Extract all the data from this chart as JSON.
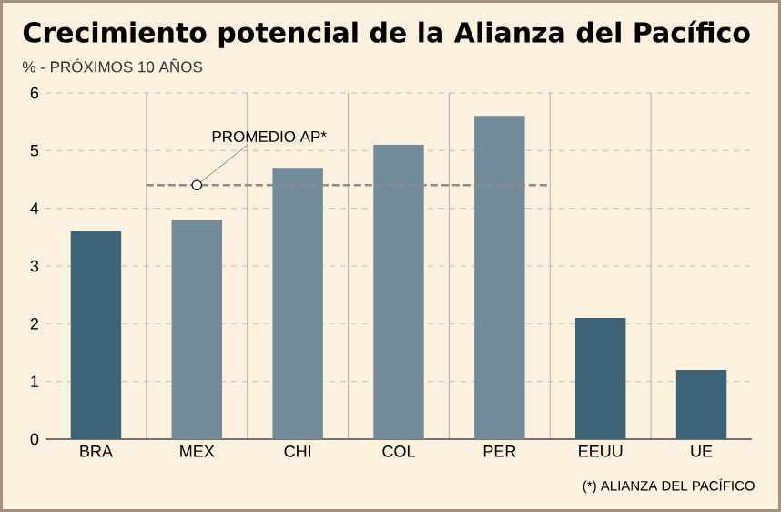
{
  "chart_data": {
    "type": "bar",
    "title": "Crecimiento potencial de la Alianza del Pacífico",
    "subtitle": "% - PRÓXIMOS 10 AÑOS",
    "categories": [
      "BRA",
      "MEX",
      "CHI",
      "COL",
      "PER",
      "EEUU",
      "UE"
    ],
    "values": [
      3.6,
      3.8,
      4.7,
      5.1,
      5.6,
      2.1,
      1.2
    ],
    "colors": [
      "#3b6275",
      "#718b9b",
      "#718b9b",
      "#718b9b",
      "#718b9b",
      "#3b6275",
      "#3b6275"
    ],
    "ylim": [
      0,
      6
    ],
    "yticks": [
      0,
      1,
      2,
      3,
      4,
      5,
      6
    ],
    "grid": true,
    "ref_lines": [
      {
        "axis": "y",
        "value": 4.4,
        "label": "PROMEDIO AP*",
        "line_style": "dashed",
        "color": "#8c8c8c"
      }
    ],
    "annotations": [
      "(*) ALIANZA DEL PACÍFICO"
    ]
  }
}
